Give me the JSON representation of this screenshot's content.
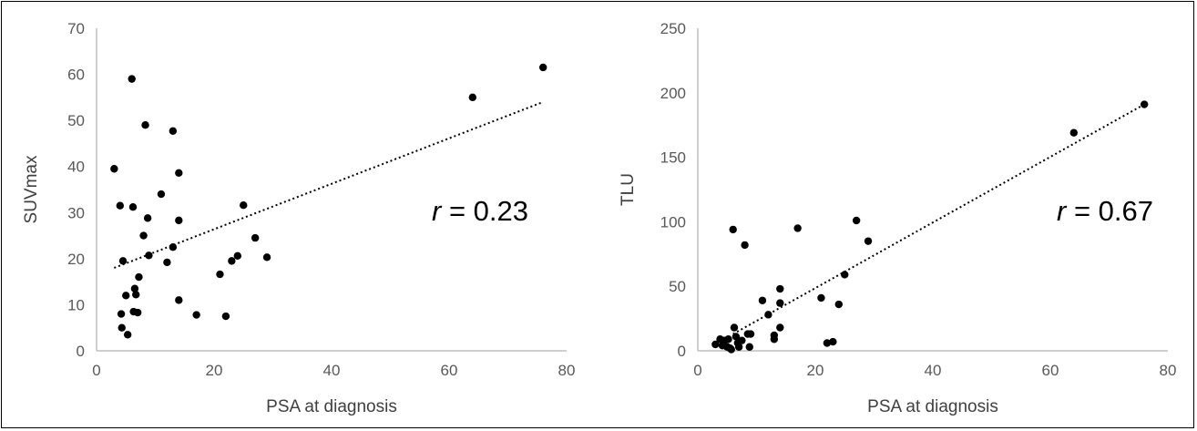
{
  "colors": {
    "marker": "#000000",
    "axis": "#bfbfbf",
    "text": "#595959"
  },
  "chart_data": [
    {
      "type": "scatter",
      "xlabel": "PSA at diagnosis",
      "ylabel": "SUVmax",
      "xlim": [
        0,
        80
      ],
      "ylim": [
        0,
        70
      ],
      "xticks": [
        0,
        20,
        40,
        60,
        80
      ],
      "yticks": [
        0,
        10,
        20,
        30,
        40,
        50,
        60,
        70
      ],
      "grid": false,
      "trendline": {
        "type": "linear",
        "style": "dotted",
        "x_range": [
          3,
          76
        ],
        "y_start": 18,
        "y_end": 54
      },
      "annotation": {
        "r_symbol": "r",
        "text": " = 0.23"
      },
      "points": [
        [
          3,
          39.5
        ],
        [
          4,
          31.5
        ],
        [
          4.5,
          19.5
        ],
        [
          4.2,
          8
        ],
        [
          4.3,
          5
        ],
        [
          5,
          12
        ],
        [
          5.3,
          3.5
        ],
        [
          6,
          59
        ],
        [
          6.2,
          31.2
        ],
        [
          6.3,
          8.5
        ],
        [
          6.5,
          13.5
        ],
        [
          6.7,
          12.2
        ],
        [
          7,
          8.3
        ],
        [
          7.2,
          16
        ],
        [
          8,
          25
        ],
        [
          8.3,
          49
        ],
        [
          8.7,
          28.8
        ],
        [
          8.9,
          20.7
        ],
        [
          11,
          34
        ],
        [
          12,
          19.2
        ],
        [
          13,
          47.7
        ],
        [
          13,
          22.5
        ],
        [
          14,
          38.6
        ],
        [
          14,
          28.3
        ],
        [
          14,
          11
        ],
        [
          17,
          7.8
        ],
        [
          21,
          16.6
        ],
        [
          22,
          7.5
        ],
        [
          23,
          19.5
        ],
        [
          24,
          20.6
        ],
        [
          25,
          31.6
        ],
        [
          27,
          24.5
        ],
        [
          29,
          20.3
        ],
        [
          64,
          55
        ],
        [
          76,
          61.5
        ]
      ]
    },
    {
      "type": "scatter",
      "xlabel": "PSA at diagnosis",
      "ylabel": "TLU",
      "xlim": [
        0,
        80
      ],
      "ylim": [
        0,
        250
      ],
      "xticks": [
        0,
        20,
        40,
        60,
        80
      ],
      "yticks": [
        0,
        50,
        100,
        150,
        200,
        250
      ],
      "grid": false,
      "trendline": {
        "type": "linear",
        "style": "dotted",
        "x_range": [
          6,
          76
        ],
        "y_start": 13,
        "y_end": 191
      },
      "annotation": {
        "r_symbol": "r",
        "text": " = 0.67"
      },
      "points": [
        [
          3,
          5
        ],
        [
          3.8,
          9
        ],
        [
          4.2,
          4
        ],
        [
          4.5,
          8
        ],
        [
          5,
          3
        ],
        [
          5.2,
          9
        ],
        [
          5.5,
          2
        ],
        [
          5.7,
          1
        ],
        [
          6,
          94
        ],
        [
          6.2,
          18
        ],
        [
          6.5,
          11
        ],
        [
          6.8,
          6
        ],
        [
          7,
          3
        ],
        [
          7.5,
          8
        ],
        [
          8,
          82
        ],
        [
          8.5,
          13
        ],
        [
          8.8,
          3
        ],
        [
          9,
          13
        ],
        [
          11,
          39
        ],
        [
          12,
          28
        ],
        [
          13,
          12
        ],
        [
          13,
          9
        ],
        [
          14,
          48
        ],
        [
          14,
          37
        ],
        [
          14,
          18
        ],
        [
          17,
          95
        ],
        [
          21,
          41
        ],
        [
          22,
          6
        ],
        [
          23,
          7
        ],
        [
          24,
          36
        ],
        [
          25,
          59
        ],
        [
          27,
          101
        ],
        [
          29,
          85
        ],
        [
          64,
          169
        ],
        [
          76,
          191
        ]
      ]
    }
  ]
}
